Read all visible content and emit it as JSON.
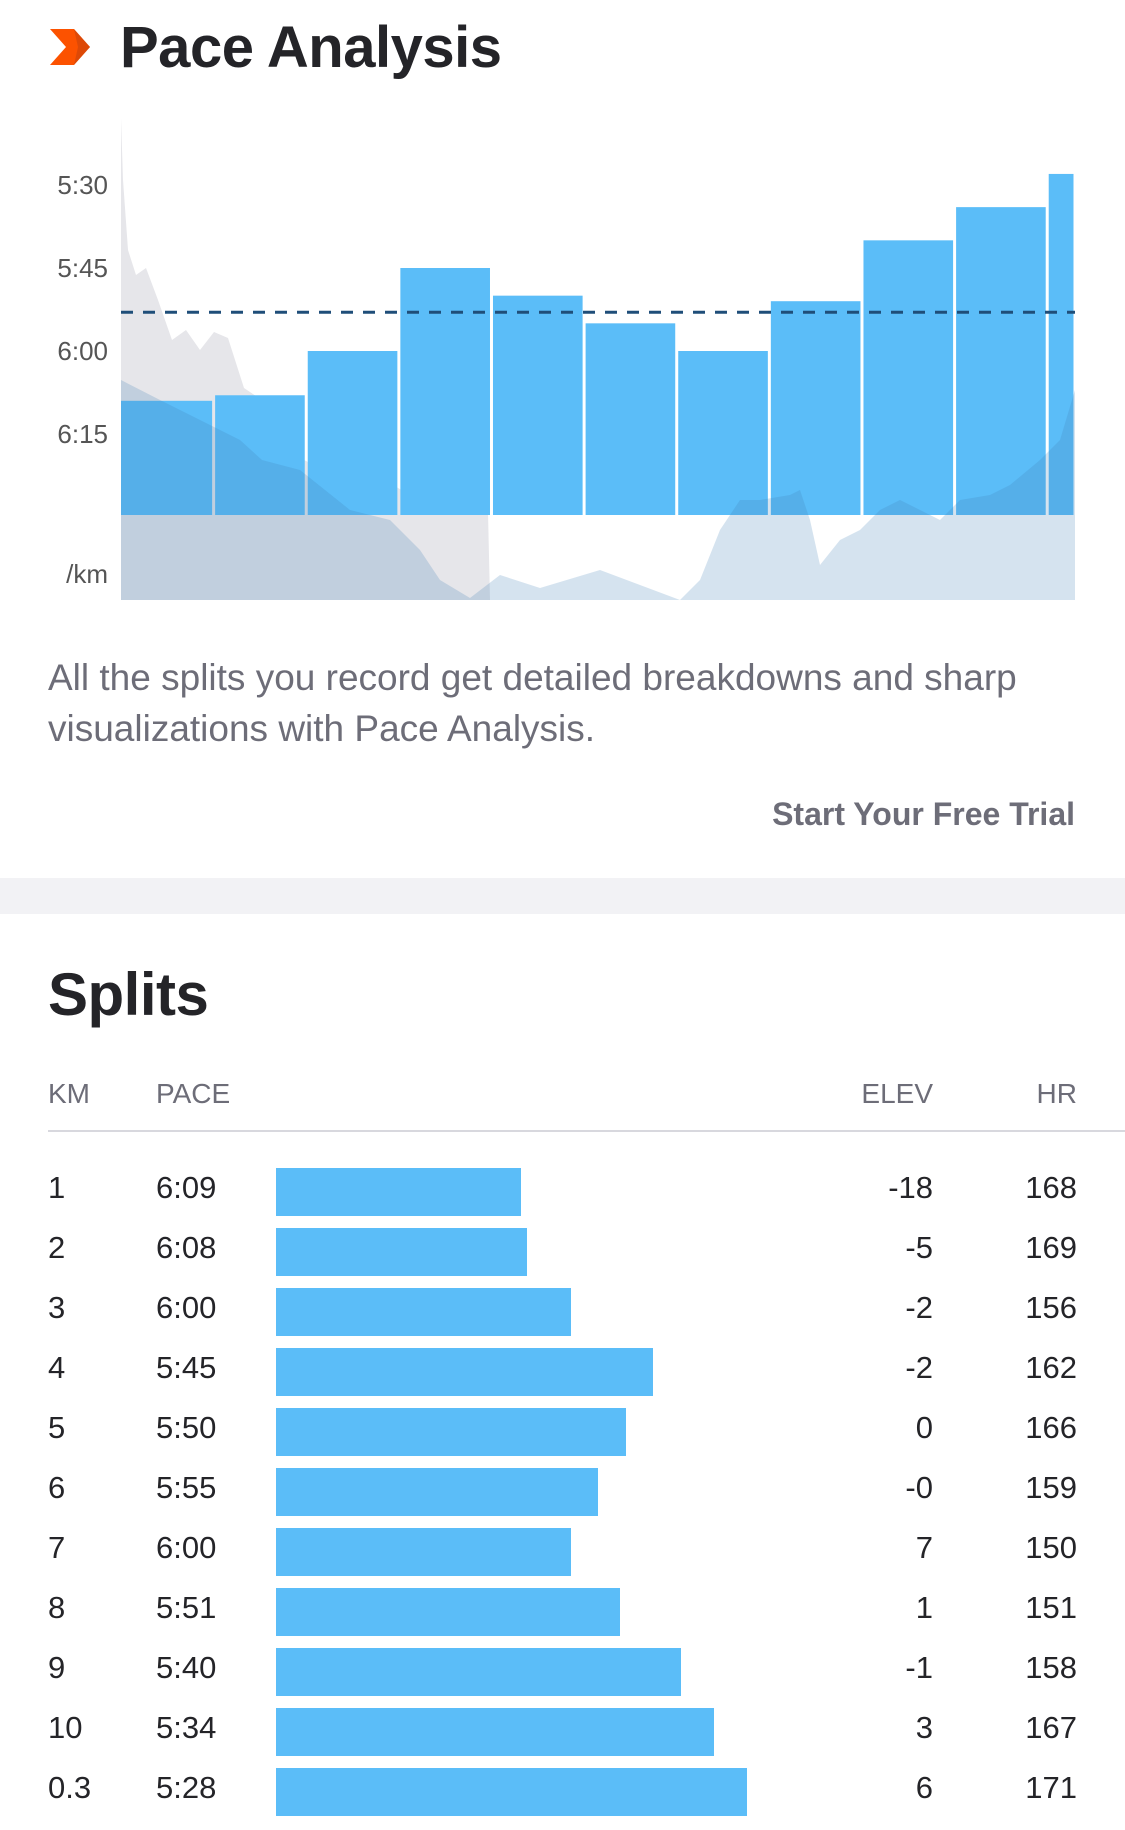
{
  "pace_analysis": {
    "title": "Pace Analysis",
    "icon": "chevron-right-icon",
    "description": "All the splits you record get detailed breakdowns and sharp visualizations with Pace Analysis.",
    "cta_label": "Start Your Free Trial",
    "colors": {
      "accent": "#fc5200",
      "bar": "#5bbdf8",
      "avg_line": "#1f4e79",
      "text_muted": "#6d6d78"
    }
  },
  "chart_data": {
    "type": "bar",
    "categories": [
      "1",
      "2",
      "3",
      "4",
      "5",
      "6",
      "7",
      "8",
      "9",
      "10",
      "0.3"
    ],
    "values": [
      "6:09",
      "6:08",
      "6:00",
      "5:45",
      "5:50",
      "5:55",
      "6:00",
      "5:51",
      "5:40",
      "5:34",
      "5:28"
    ],
    "bar_widths_km": [
      1,
      1,
      1,
      1,
      1,
      1,
      1,
      1,
      1,
      1,
      0.3
    ],
    "y_ticks": [
      "5:30",
      "5:45",
      "6:00",
      "6:15"
    ],
    "ylabel": "/km",
    "average_pace": "5:53",
    "inverted_y": true
  },
  "splits": {
    "title": "Splits",
    "headers": {
      "km": "KM",
      "pace": "PACE",
      "elev": "ELEV",
      "hr": "HR"
    },
    "rows": [
      {
        "km": "1",
        "pace": "6:09",
        "elev": "-18",
        "hr": "168"
      },
      {
        "km": "2",
        "pace": "6:08",
        "elev": "-5",
        "hr": "169"
      },
      {
        "km": "3",
        "pace": "6:00",
        "elev": "-2",
        "hr": "156"
      },
      {
        "km": "4",
        "pace": "5:45",
        "elev": "-2",
        "hr": "162"
      },
      {
        "km": "5",
        "pace": "5:50",
        "elev": "0",
        "hr": "166"
      },
      {
        "km": "6",
        "pace": "5:55",
        "elev": "-0",
        "hr": "159"
      },
      {
        "km": "7",
        "pace": "6:00",
        "elev": "7",
        "hr": "150"
      },
      {
        "km": "8",
        "pace": "5:51",
        "elev": "1",
        "hr": "151"
      },
      {
        "km": "9",
        "pace": "5:40",
        "elev": "-1",
        "hr": "158"
      },
      {
        "km": "10",
        "pace": "5:34",
        "elev": "3",
        "hr": "167"
      },
      {
        "km": "0.3",
        "pace": "5:28",
        "elev": "6",
        "hr": "171"
      }
    ]
  }
}
